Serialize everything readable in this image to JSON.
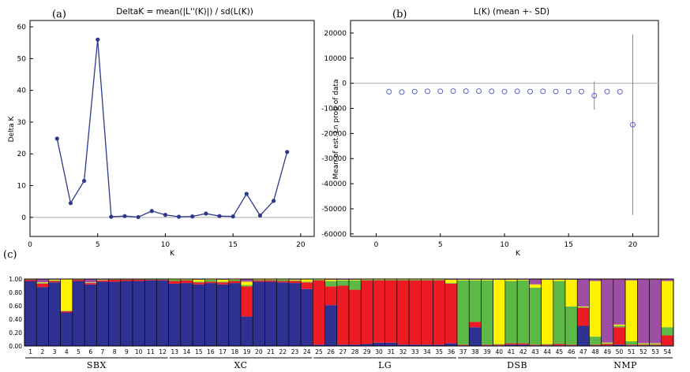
{
  "chart_data": [
    {
      "id": "panel-a",
      "type": "line",
      "panel_label": "(a)",
      "title": "DeltaK = mean(|L''(K)|) / sd(L(K))",
      "xlabel": "K",
      "ylabel": "Delta K",
      "xlim": [
        0,
        21
      ],
      "ylim": [
        -6,
        62
      ],
      "xticks": [
        0,
        5,
        10,
        15,
        20
      ],
      "yticks": [
        0,
        10,
        20,
        30,
        40,
        50,
        60
      ],
      "x": [
        2,
        3,
        4,
        5,
        6,
        7,
        8,
        9,
        10,
        11,
        12,
        13,
        14,
        15,
        16,
        17,
        18,
        19
      ],
      "y": [
        24.8,
        4.5,
        11.5,
        56.0,
        0.2,
        0.4,
        0.1,
        2.0,
        0.8,
        0.2,
        0.3,
        1.2,
        0.4,
        0.3,
        7.4,
        0.6,
        5.2,
        20.6
      ],
      "color": "#2d3a8c",
      "reference_line_y": 0
    },
    {
      "id": "panel-b",
      "type": "scatter",
      "panel_label": "(b)",
      "title": "L(K) (mean +- SD)",
      "xlabel": "K",
      "ylabel": "Mean of est. Ln prob of data",
      "xlim": [
        -2,
        22
      ],
      "ylim": [
        -61000,
        25000
      ],
      "xticks": [
        0,
        5,
        10,
        15,
        20
      ],
      "yticks": [
        20000,
        10000,
        0,
        -10000,
        -20000,
        -30000,
        -40000,
        -50000,
        -60000
      ],
      "x": [
        1,
        2,
        3,
        4,
        5,
        6,
        7,
        8,
        9,
        10,
        11,
        12,
        13,
        14,
        15,
        16,
        17,
        18,
        19,
        20
      ],
      "y": [
        -3400,
        -3500,
        -3300,
        -3200,
        -3200,
        -3100,
        -3100,
        -3100,
        -3200,
        -3300,
        -3200,
        -3300,
        -3200,
        -3300,
        -3300,
        -3300,
        -4900,
        -3300,
        -3400,
        -16500
      ],
      "sd": [
        0,
        0,
        0,
        0,
        0,
        0,
        0,
        0,
        0,
        0,
        0,
        0,
        0,
        0,
        0,
        0,
        5600,
        0,
        0,
        36000
      ],
      "color": "#4a52c8",
      "reference_line_y": 0
    },
    {
      "id": "panel-c",
      "type": "bar",
      "panel_label": "(c)",
      "title": "",
      "ylim": [
        0,
        1
      ],
      "yticks": [
        "0.00",
        "0.20",
        "0.40",
        "0.60",
        "0.80",
        "1.00"
      ],
      "cluster_colors": {
        "blue": "#2e3192",
        "red": "#ed1c24",
        "green": "#5cb946",
        "yellow": "#fff200",
        "purple": "#9e4fa3"
      },
      "groups": [
        {
          "name": "SBX",
          "first": 1,
          "last": 12
        },
        {
          "name": "XC",
          "first": 13,
          "last": 24
        },
        {
          "name": "LG",
          "first": 25,
          "last": 36
        },
        {
          "name": "DSB",
          "first": 37,
          "last": 46
        },
        {
          "name": "NMP",
          "first": 47,
          "last": 54
        }
      ],
      "samples": [
        {
          "id": "1",
          "blue": 0.97,
          "red": 0.02,
          "green": 0.005,
          "yellow": 0.005,
          "purple": 0.0
        },
        {
          "id": "2",
          "blue": 0.88,
          "red": 0.05,
          "green": 0.01,
          "yellow": 0.01,
          "purple": 0.05
        },
        {
          "id": "3",
          "blue": 0.95,
          "red": 0.02,
          "green": 0.01,
          "yellow": 0.01,
          "purple": 0.01
        },
        {
          "id": "4",
          "blue": 0.5,
          "red": 0.02,
          "green": 0.005,
          "yellow": 0.47,
          "purple": 0.005
        },
        {
          "id": "5",
          "blue": 0.97,
          "red": 0.02,
          "green": 0.005,
          "yellow": 0.005,
          "purple": 0.0
        },
        {
          "id": "6",
          "blue": 0.92,
          "red": 0.02,
          "green": 0.005,
          "yellow": 0.005,
          "purple": 0.05
        },
        {
          "id": "7",
          "blue": 0.96,
          "red": 0.02,
          "green": 0.005,
          "yellow": 0.005,
          "purple": 0.01
        },
        {
          "id": "8",
          "blue": 0.96,
          "red": 0.03,
          "green": 0.005,
          "yellow": 0.005,
          "purple": 0.0
        },
        {
          "id": "9",
          "blue": 0.97,
          "red": 0.02,
          "green": 0.005,
          "yellow": 0.005,
          "purple": 0.0
        },
        {
          "id": "10",
          "blue": 0.97,
          "red": 0.02,
          "green": 0.005,
          "yellow": 0.005,
          "purple": 0.0
        },
        {
          "id": "11",
          "blue": 0.98,
          "red": 0.01,
          "green": 0.005,
          "yellow": 0.005,
          "purple": 0.0
        },
        {
          "id": "12",
          "blue": 0.98,
          "red": 0.01,
          "green": 0.005,
          "yellow": 0.005,
          "purple": 0.0
        },
        {
          "id": "13",
          "blue": 0.93,
          "red": 0.04,
          "green": 0.02,
          "yellow": 0.01,
          "purple": 0.0
        },
        {
          "id": "14",
          "blue": 0.94,
          "red": 0.04,
          "green": 0.01,
          "yellow": 0.01,
          "purple": 0.0
        },
        {
          "id": "15",
          "blue": 0.92,
          "red": 0.03,
          "green": 0.01,
          "yellow": 0.03,
          "purple": 0.01
        },
        {
          "id": "16",
          "blue": 0.94,
          "red": 0.02,
          "green": 0.03,
          "yellow": 0.01,
          "purple": 0.0
        },
        {
          "id": "17",
          "blue": 0.92,
          "red": 0.03,
          "green": 0.01,
          "yellow": 0.03,
          "purple": 0.01
        },
        {
          "id": "18",
          "blue": 0.94,
          "red": 0.03,
          "green": 0.02,
          "yellow": 0.01,
          "purple": 0.0
        },
        {
          "id": "19",
          "blue": 0.44,
          "red": 0.45,
          "green": 0.02,
          "yellow": 0.05,
          "purple": 0.04
        },
        {
          "id": "20",
          "blue": 0.96,
          "red": 0.02,
          "green": 0.01,
          "yellow": 0.01,
          "purple": 0.0
        },
        {
          "id": "21",
          "blue": 0.96,
          "red": 0.02,
          "green": 0.01,
          "yellow": 0.01,
          "purple": 0.0
        },
        {
          "id": "22",
          "blue": 0.95,
          "red": 0.02,
          "green": 0.02,
          "yellow": 0.01,
          "purple": 0.0
        },
        {
          "id": "23",
          "blue": 0.94,
          "red": 0.03,
          "green": 0.01,
          "yellow": 0.01,
          "purple": 0.01
        },
        {
          "id": "24",
          "blue": 0.85,
          "red": 0.1,
          "green": 0.01,
          "yellow": 0.04,
          "purple": 0.0
        },
        {
          "id": "25",
          "blue": 0.02,
          "red": 0.96,
          "green": 0.01,
          "yellow": 0.01,
          "purple": 0.0
        },
        {
          "id": "26",
          "blue": 0.61,
          "red": 0.28,
          "green": 0.08,
          "yellow": 0.02,
          "purple": 0.01
        },
        {
          "id": "27",
          "blue": 0.02,
          "red": 0.88,
          "green": 0.08,
          "yellow": 0.01,
          "purple": 0.01
        },
        {
          "id": "28",
          "blue": 0.02,
          "red": 0.82,
          "green": 0.14,
          "yellow": 0.01,
          "purple": 0.01
        },
        {
          "id": "29",
          "blue": 0.03,
          "red": 0.95,
          "green": 0.01,
          "yellow": 0.01,
          "purple": 0.0
        },
        {
          "id": "30",
          "blue": 0.05,
          "red": 0.93,
          "green": 0.01,
          "yellow": 0.01,
          "purple": 0.0
        },
        {
          "id": "31",
          "blue": 0.05,
          "red": 0.93,
          "green": 0.01,
          "yellow": 0.01,
          "purple": 0.0
        },
        {
          "id": "32",
          "blue": 0.02,
          "red": 0.96,
          "green": 0.01,
          "yellow": 0.01,
          "purple": 0.0
        },
        {
          "id": "33",
          "blue": 0.02,
          "red": 0.96,
          "green": 0.01,
          "yellow": 0.01,
          "purple": 0.0
        },
        {
          "id": "34",
          "blue": 0.02,
          "red": 0.96,
          "green": 0.01,
          "yellow": 0.01,
          "purple": 0.0
        },
        {
          "id": "35",
          "blue": 0.02,
          "red": 0.96,
          "green": 0.01,
          "yellow": 0.01,
          "purple": 0.0
        },
        {
          "id": "36",
          "blue": 0.04,
          "red": 0.89,
          "green": 0.01,
          "yellow": 0.05,
          "purple": 0.01
        },
        {
          "id": "37",
          "blue": 0.01,
          "red": 0.01,
          "green": 0.96,
          "yellow": 0.01,
          "purple": 0.01
        },
        {
          "id": "38",
          "blue": 0.28,
          "red": 0.08,
          "green": 0.62,
          "yellow": 0.01,
          "purple": 0.01
        },
        {
          "id": "39",
          "blue": 0.01,
          "red": 0.01,
          "green": 0.96,
          "yellow": 0.01,
          "purple": 0.01
        },
        {
          "id": "40",
          "blue": 0.01,
          "red": 0.01,
          "green": 0.01,
          "yellow": 0.96,
          "purple": 0.01
        },
        {
          "id": "41",
          "blue": 0.02,
          "red": 0.02,
          "green": 0.93,
          "yellow": 0.02,
          "purple": 0.01
        },
        {
          "id": "42",
          "blue": 0.02,
          "red": 0.02,
          "green": 0.94,
          "yellow": 0.01,
          "purple": 0.01
        },
        {
          "id": "43",
          "blue": 0.01,
          "red": 0.01,
          "green": 0.85,
          "yellow": 0.05,
          "purple": 0.08
        },
        {
          "id": "44",
          "blue": 0.01,
          "red": 0.01,
          "green": 0.01,
          "yellow": 0.96,
          "purple": 0.01
        },
        {
          "id": "45",
          "blue": 0.01,
          "red": 0.02,
          "green": 0.94,
          "yellow": 0.02,
          "purple": 0.01
        },
        {
          "id": "46",
          "blue": 0.01,
          "red": 0.01,
          "green": 0.57,
          "yellow": 0.4,
          "purple": 0.01
        },
        {
          "id": "47",
          "blue": 0.3,
          "red": 0.27,
          "green": 0.01,
          "yellow": 0.01,
          "purple": 0.41
        },
        {
          "id": "48",
          "blue": 0.01,
          "red": 0.01,
          "green": 0.12,
          "yellow": 0.83,
          "purple": 0.03
        },
        {
          "id": "49",
          "blue": 0.01,
          "red": 0.02,
          "green": 0.01,
          "yellow": 0.01,
          "purple": 0.95
        },
        {
          "id": "50",
          "blue": 0.02,
          "red": 0.26,
          "green": 0.02,
          "yellow": 0.02,
          "purple": 0.68
        },
        {
          "id": "51",
          "blue": 0.01,
          "red": 0.01,
          "green": 0.05,
          "yellow": 0.91,
          "purple": 0.02
        },
        {
          "id": "52",
          "blue": 0.01,
          "red": 0.01,
          "green": 0.01,
          "yellow": 0.01,
          "purple": 0.96
        },
        {
          "id": "53",
          "blue": 0.01,
          "red": 0.01,
          "green": 0.01,
          "yellow": 0.01,
          "purple": 0.96
        },
        {
          "id": "54",
          "blue": 0.01,
          "red": 0.15,
          "green": 0.12,
          "yellow": 0.69,
          "purple": 0.03
        }
      ]
    }
  ]
}
